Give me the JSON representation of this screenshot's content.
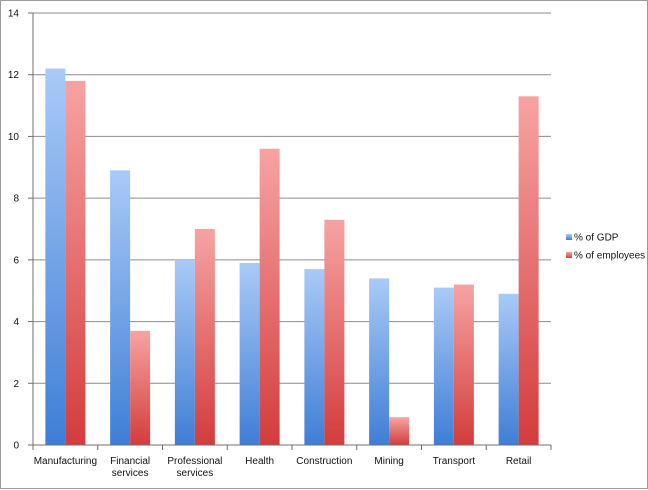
{
  "chart_data": {
    "type": "bar",
    "title": "",
    "xlabel": "",
    "ylabel": "",
    "ylim": [
      0,
      14
    ],
    "yticks": [
      0,
      2,
      4,
      6,
      8,
      10,
      12,
      14
    ],
    "grid": true,
    "legend_position": "right",
    "categories": [
      [
        "Manufacturing"
      ],
      [
        "Financial",
        "services"
      ],
      [
        "Professional",
        "services"
      ],
      [
        "Health"
      ],
      [
        "Construction"
      ],
      [
        "Mining"
      ],
      [
        "Transport"
      ],
      [
        "Retail"
      ]
    ],
    "series": [
      {
        "name": "% of GDP",
        "color_top": "#a9caf6",
        "color_bottom": "#3f7ed6",
        "values": [
          12.2,
          8.9,
          6.0,
          5.9,
          5.7,
          5.4,
          5.1,
          4.9
        ]
      },
      {
        "name": "% of employees",
        "color_top": "#f7a3a3",
        "color_bottom": "#d33c3c",
        "values": [
          11.8,
          3.7,
          7.0,
          9.6,
          7.3,
          0.9,
          5.2,
          11.3
        ]
      }
    ]
  }
}
